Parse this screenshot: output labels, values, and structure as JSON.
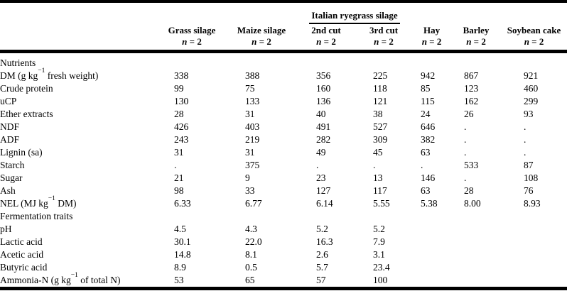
{
  "table": {
    "spanner": {
      "label": "Italian ryegrass silage",
      "covers_columns": [
        "2nd cut",
        "3rd cut"
      ]
    },
    "columns": [
      {
        "label": "Grass silage",
        "n": "n = 2"
      },
      {
        "label": "Maize silage",
        "n": "n = 2"
      },
      {
        "label": "2nd cut",
        "n": "n = 2"
      },
      {
        "label": "3rd cut",
        "n": "n = 2"
      },
      {
        "label": "Hay",
        "n": "n = 2"
      },
      {
        "label": "Barley",
        "n": "n = 2"
      },
      {
        "label": "Soybean cake",
        "n": "n = 2"
      }
    ],
    "sections": [
      {
        "title": "Nutrients",
        "rows": [
          {
            "label_parts": [
              {
                "t": "DM (g kg"
              },
              {
                "t": "−1",
                "sup": true
              },
              {
                "t": " fresh weight)"
              }
            ],
            "values": [
              "338",
              "388",
              "356",
              "225",
              "942",
              "867",
              "921"
            ]
          },
          {
            "label_parts": [
              {
                "t": "Crude protein"
              }
            ],
            "values": [
              "99",
              "75",
              "160",
              "118",
              "85",
              "123",
              "460"
            ]
          },
          {
            "label_parts": [
              {
                "t": "uCP"
              }
            ],
            "values": [
              "130",
              "133",
              "136",
              "121",
              "115",
              "162",
              "299"
            ]
          },
          {
            "label_parts": [
              {
                "t": "Ether extracts"
              }
            ],
            "values": [
              "28",
              "31",
              "40",
              "38",
              "24",
              "26",
              "93"
            ]
          },
          {
            "label_parts": [
              {
                "t": "NDF"
              }
            ],
            "values": [
              "426",
              "403",
              "491",
              "527",
              "646",
              ".",
              "."
            ]
          },
          {
            "label_parts": [
              {
                "t": "ADF"
              }
            ],
            "values": [
              "243",
              "219",
              "282",
              "309",
              "382",
              ".",
              "."
            ]
          },
          {
            "label_parts": [
              {
                "t": "Lignin (sa)"
              }
            ],
            "values": [
              "31",
              "31",
              "49",
              "45",
              "63",
              ".",
              "."
            ]
          },
          {
            "label_parts": [
              {
                "t": "Starch"
              }
            ],
            "values": [
              ".",
              "375",
              ".",
              ".",
              ".",
              "533",
              "87"
            ]
          },
          {
            "label_parts": [
              {
                "t": "Sugar"
              }
            ],
            "values": [
              "21",
              "9",
              "23",
              "13",
              "146",
              ".",
              "108"
            ]
          },
          {
            "label_parts": [
              {
                "t": "Ash"
              }
            ],
            "values": [
              "98",
              "33",
              "127",
              "117",
              "63",
              "28",
              "76"
            ]
          },
          {
            "label_parts": [
              {
                "t": "NEL (MJ kg"
              },
              {
                "t": "−1",
                "sup": true
              },
              {
                "t": " DM)"
              }
            ],
            "values": [
              "6.33",
              "6.77",
              "6.14",
              "5.55",
              "5.38",
              "8.00",
              "8.93"
            ]
          }
        ]
      },
      {
        "title": "Fermentation traits",
        "rows": [
          {
            "label_parts": [
              {
                "t": "pH"
              }
            ],
            "values": [
              "4.5",
              "4.3",
              "5.2",
              "5.2",
              "",
              "",
              ""
            ]
          },
          {
            "label_parts": [
              {
                "t": "Lactic acid"
              }
            ],
            "values": [
              "30.1",
              "22.0",
              "16.3",
              "7.9",
              "",
              "",
              ""
            ]
          },
          {
            "label_parts": [
              {
                "t": "Acetic acid"
              }
            ],
            "values": [
              "14.8",
              "8.1",
              "2.6",
              "3.1",
              "",
              "",
              ""
            ]
          },
          {
            "label_parts": [
              {
                "t": "Butyric acid"
              }
            ],
            "values": [
              "8.9",
              "0.5",
              "5.7",
              "23.4",
              "",
              "",
              ""
            ]
          },
          {
            "label_parts": [
              {
                "t": "Ammonia-N (g kg"
              },
              {
                "t": "−1",
                "sup": true
              },
              {
                "t": " of total N)"
              }
            ],
            "values": [
              "53",
              "65",
              "57",
              "100",
              "",
              "",
              ""
            ]
          }
        ]
      }
    ]
  }
}
